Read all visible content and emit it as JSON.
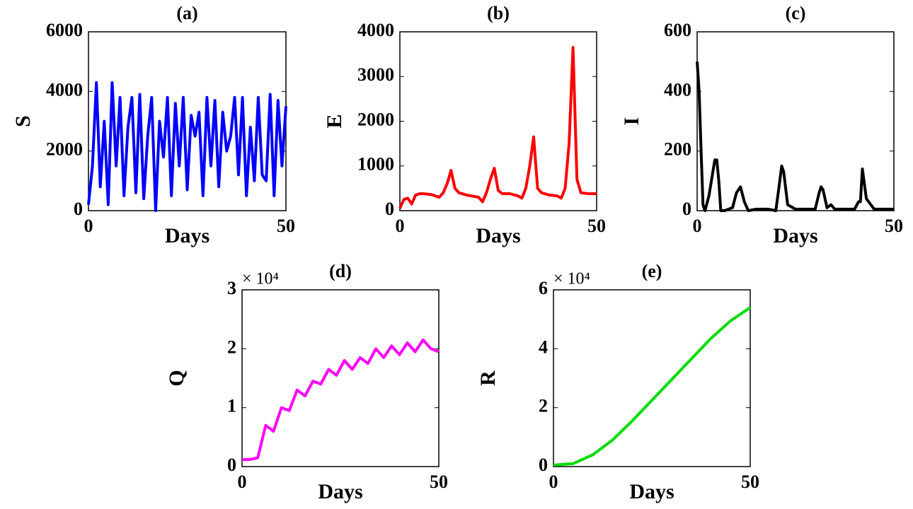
{
  "chart_data": [
    {
      "type": "line",
      "title": "(a)",
      "xlabel": "Days",
      "ylabel": "S",
      "color": "#0000ff",
      "x": [
        0,
        1,
        2,
        3,
        4,
        5,
        6,
        7,
        8,
        9,
        10,
        11,
        12,
        13,
        14,
        15,
        16,
        17,
        18,
        19,
        20,
        21,
        22,
        23,
        24,
        25,
        26,
        27,
        28,
        29,
        30,
        31,
        32,
        33,
        34,
        35,
        36,
        37,
        38,
        39,
        40,
        41,
        42,
        43,
        44,
        45,
        46,
        47,
        48,
        49,
        50
      ],
      "values": [
        200,
        1500,
        4300,
        800,
        3000,
        200,
        4300,
        1500,
        3800,
        500,
        2800,
        3800,
        600,
        3900,
        400,
        2500,
        3800,
        0,
        3000,
        1800,
        3800,
        500,
        3600,
        1500,
        3800,
        700,
        3200,
        2500,
        3300,
        500,
        3800,
        1500,
        3700,
        800,
        3300,
        2000,
        2500,
        3800,
        1200,
        3800,
        500,
        2800,
        1000,
        3800,
        1200,
        1000,
        3900,
        500,
        3700,
        1500,
        3500
      ],
      "xlim": [
        0,
        50
      ],
      "xticks": [
        0,
        50
      ],
      "ylim": [
        0,
        6000
      ],
      "yticks": [
        0,
        2000,
        4000,
        6000
      ]
    },
    {
      "type": "line",
      "title": "(b)",
      "xlabel": "Days",
      "ylabel": "E",
      "color": "#ff0000",
      "x": [
        0,
        1,
        2,
        3,
        4,
        5,
        6,
        8,
        10,
        11,
        12,
        13,
        14,
        15,
        17,
        20,
        21,
        22,
        23,
        24,
        25,
        26,
        28,
        30,
        31,
        32,
        33,
        34,
        35,
        36,
        38,
        40,
        41,
        42,
        43,
        44,
        45,
        46,
        48,
        50
      ],
      "values": [
        50,
        250,
        280,
        150,
        350,
        380,
        380,
        360,
        300,
        400,
        600,
        900,
        500,
        400,
        350,
        300,
        200,
        400,
        700,
        950,
        450,
        380,
        380,
        330,
        280,
        500,
        1000,
        1650,
        500,
        400,
        350,
        330,
        280,
        500,
        1500,
        3650,
        700,
        400,
        380,
        380
      ],
      "xlim": [
        0,
        50
      ],
      "xticks": [
        0,
        50
      ],
      "ylim": [
        0,
        4000
      ],
      "yticks": [
        0,
        1000,
        2000,
        3000,
        4000
      ]
    },
    {
      "type": "line",
      "title": "(c)",
      "xlabel": "Days",
      "ylabel": "I",
      "color": "#000000",
      "x": [
        0,
        0.5,
        1,
        1.5,
        2,
        3,
        4,
        4.5,
        5,
        5.5,
        6,
        7,
        9,
        10,
        11,
        12,
        13,
        15,
        18,
        20,
        21,
        21.5,
        22,
        23,
        25,
        30,
        31,
        31.5,
        32,
        33,
        34,
        35,
        38,
        40,
        41,
        41.5,
        42,
        43,
        45,
        50
      ],
      "values": [
        500,
        400,
        200,
        20,
        0,
        50,
        130,
        170,
        170,
        100,
        0,
        0,
        10,
        60,
        80,
        30,
        0,
        5,
        5,
        0,
        100,
        150,
        130,
        20,
        5,
        5,
        60,
        80,
        70,
        10,
        20,
        5,
        5,
        5,
        30,
        30,
        140,
        40,
        5,
        5
      ],
      "xlim": [
        0,
        50
      ],
      "xticks": [
        0,
        50
      ],
      "ylim": [
        0,
        600
      ],
      "yticks": [
        0,
        200,
        400,
        600
      ]
    },
    {
      "type": "line",
      "title": "(d)",
      "xlabel": "Days",
      "ylabel": "Q",
      "y_multiplier": "× 10⁴",
      "color": "#ff00ff",
      "x": [
        0,
        2,
        4,
        6,
        8,
        10,
        12,
        14,
        16,
        18,
        20,
        22,
        24,
        26,
        28,
        30,
        32,
        34,
        36,
        38,
        40,
        42,
        44,
        46,
        48,
        50
      ],
      "values": [
        0.12,
        0.12,
        0.15,
        0.7,
        0.6,
        1.0,
        0.95,
        1.3,
        1.2,
        1.45,
        1.4,
        1.65,
        1.55,
        1.8,
        1.65,
        1.85,
        1.75,
        2.0,
        1.85,
        2.05,
        1.9,
        2.1,
        1.95,
        2.15,
        2.0,
        1.95
      ],
      "xlim": [
        0,
        50
      ],
      "xticks": [
        0,
        50
      ],
      "ylim": [
        0,
        3
      ],
      "yticks": [
        0,
        1,
        2,
        3
      ]
    },
    {
      "type": "line",
      "title": "(e)",
      "xlabel": "Days",
      "ylabel": "R",
      "y_multiplier": "× 10⁴",
      "color": "#00dd00",
      "x": [
        0,
        5,
        10,
        15,
        20,
        25,
        30,
        35,
        40,
        45,
        50
      ],
      "values": [
        0.05,
        0.1,
        0.4,
        0.9,
        1.55,
        2.25,
        2.95,
        3.65,
        4.35,
        4.95,
        5.4
      ],
      "xlim": [
        0,
        50
      ],
      "xticks": [
        0,
        50
      ],
      "ylim": [
        0,
        6
      ],
      "yticks": [
        0,
        2,
        4,
        6
      ]
    }
  ]
}
